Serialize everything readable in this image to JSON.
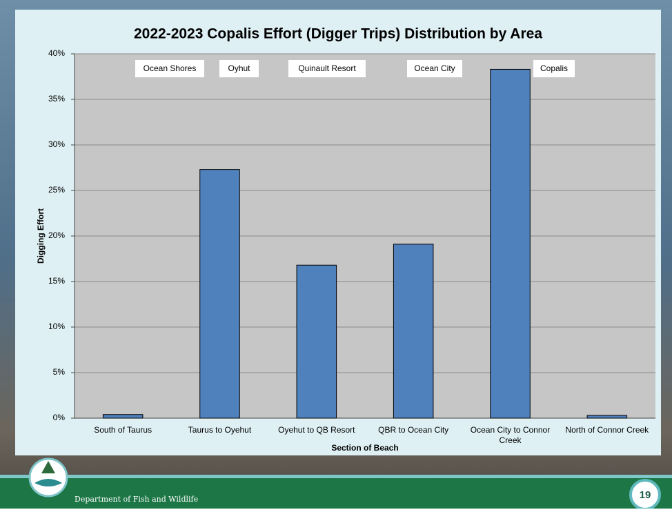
{
  "chart_data": {
    "type": "bar",
    "title": "2022-2023 Copalis Effort (Digger Trips) Distribution by Area",
    "x_label": "Section of Beach",
    "y_label": "Digging Effort",
    "categories": [
      "South of Taurus",
      "Taurus to Oyehut",
      "Oyehut to QB Resort",
      "QBR to Ocean City",
      "Ocean City to Connor Creek",
      "North of Connor Creek"
    ],
    "values": [
      0.4,
      27.3,
      16.8,
      19.1,
      38.3,
      0.3
    ],
    "color": "#4f81bd",
    "ylim": [
      0,
      40
    ],
    "yticks": [
      {
        "value": 0,
        "label": "0%"
      },
      {
        "value": 5,
        "label": "5%"
      },
      {
        "value": 10,
        "label": "10%"
      },
      {
        "value": 15,
        "label": "15%"
      },
      {
        "value": 20,
        "label": "20%"
      },
      {
        "value": 25,
        "label": "25%"
      },
      {
        "value": 30,
        "label": "30%"
      },
      {
        "value": 35,
        "label": "35%"
      },
      {
        "value": 40,
        "label": "40%"
      }
    ],
    "grid": true,
    "annotations": [
      "Ocean Shores",
      "Oyhut",
      "Quinault Resort",
      "Ocean City",
      "Copalis"
    ]
  },
  "footer": {
    "organization": "Department of Fish and Wildlife",
    "page_number": "19"
  }
}
